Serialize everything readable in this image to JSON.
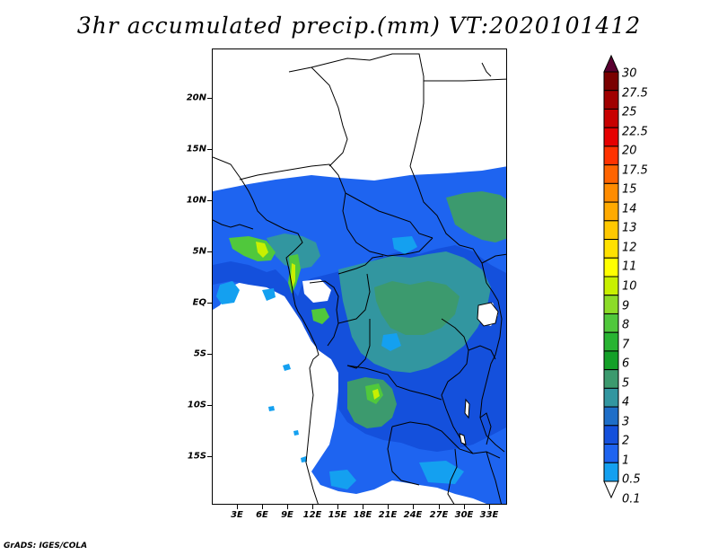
{
  "title": "3hr accumulated precip.(mm) VT:2020101412",
  "credit": "GrADS: IGES/COLA",
  "lat_labels": [
    "20N",
    "15N",
    "10N",
    "5N",
    "EQ",
    "5S",
    "10S",
    "15S"
  ],
  "lon_labels": [
    "3E",
    "6E",
    "9E",
    "12E",
    "15E",
    "18E",
    "21E",
    "24E",
    "27E",
    "30E",
    "33E"
  ],
  "colorbar": {
    "levels": [
      "30",
      "27.5",
      "25",
      "22.5",
      "20",
      "17.5",
      "15",
      "14",
      "13",
      "12",
      "11",
      "10",
      "9",
      "8",
      "7",
      "6",
      "5",
      "4",
      "3",
      "2",
      "1",
      "0.5",
      "0.1"
    ],
    "colors": [
      "#5a0030",
      "#7a0000",
      "#a00000",
      "#c80000",
      "#e60000",
      "#ff3200",
      "#ff6400",
      "#ff8c00",
      "#ffaa00",
      "#ffc800",
      "#ffe100",
      "#ffff00",
      "#c8f000",
      "#8cdc28",
      "#50c83c",
      "#28b432",
      "#14a028",
      "#3c9a6e",
      "#3296a0",
      "#1e6ec8",
      "#1450dc",
      "#1e64f0",
      "#14a0f0"
    ]
  },
  "map": {
    "background": "#ffffff",
    "precip_colors": {
      "light": "#14a0f0",
      "low": "#1e64f0",
      "mid": "#1450dc",
      "teal": "#3296a0",
      "green": "#3c9a6e",
      "bright": "#50c83c",
      "yellow": "#c8f000"
    }
  }
}
